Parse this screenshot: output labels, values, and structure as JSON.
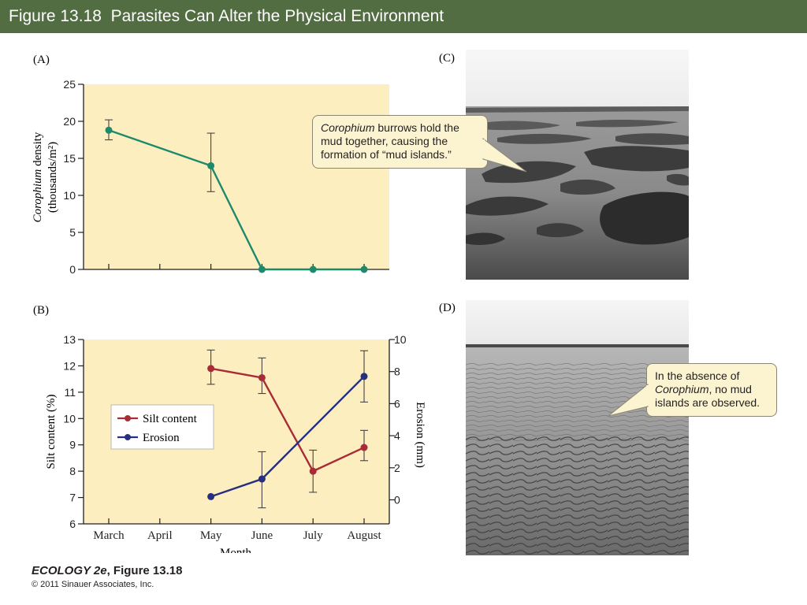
{
  "slide_title": "Figure 13.18  Parasites Can Alter the Physical Environment",
  "panels": {
    "a": "(A)",
    "b": "(B)",
    "c": "(C)",
    "d": "(D)"
  },
  "callouts": {
    "c": {
      "italic": "Corophium",
      "text": " burrows hold the mud together, causing the formation of “mud islands.”"
    },
    "d": {
      "prefix": "In the absence of ",
      "italic": "Corophium",
      "suffix": ", no mud islands are observed."
    }
  },
  "footer": {
    "book_italic": "ECOLOGY 2e",
    "book_rest": ", Figure 13.18",
    "copyright": "© 2011 Sinauer Associates, Inc."
  },
  "colors": {
    "title_bar": "#536d42",
    "plot_bg": "#fdeec0",
    "green_series": "#1d8a6b",
    "red_series": "#a82b36",
    "blue_series": "#26307f",
    "callout_bg": "#fcf3d0"
  },
  "chart_data": [
    {
      "type": "line",
      "panel": "(A)",
      "categories": [
        "March",
        "April",
        "May",
        "June",
        "July",
        "August"
      ],
      "x": [
        0,
        2,
        3,
        4,
        5
      ],
      "ylabel_italic": "Corophium",
      "ylabel_rest": " density",
      "ylabel_line2": "(thousands/m²)",
      "ylim": [
        0,
        25
      ],
      "yticks": [
        0,
        5,
        10,
        15,
        20,
        25
      ],
      "series": [
        {
          "color": "#1d8a6b",
          "values": [
            18.8,
            14.0,
            0,
            0,
            0
          ],
          "err_low": [
            17.5,
            10.5,
            null,
            null,
            null
          ],
          "err_high": [
            20.2,
            18.4,
            null,
            null,
            null
          ]
        }
      ]
    },
    {
      "type": "line",
      "panel": "(B)",
      "categories": [
        "March",
        "April",
        "May",
        "June",
        "July",
        "August"
      ],
      "xlabel": "Month",
      "ylabel": "Silt content (%)",
      "ylim": [
        6,
        13
      ],
      "yticks": [
        6,
        7,
        8,
        9,
        10,
        11,
        12,
        13
      ],
      "y2label": "Erosion (mm)",
      "y2lim": [
        -1.5,
        10
      ],
      "y2ticks": [
        0,
        2,
        4,
        6,
        8,
        10
      ],
      "legend": "center-left",
      "series": [
        {
          "name": "Silt content",
          "axis": "left",
          "color": "#a82b36",
          "x": [
            2,
            3,
            4,
            5
          ],
          "values": [
            11.9,
            11.55,
            8.0,
            8.9
          ],
          "err_low": [
            11.3,
            10.95,
            7.2,
            8.4
          ],
          "err_high": [
            12.6,
            12.3,
            8.8,
            9.55
          ]
        },
        {
          "name": "Erosion",
          "axis": "right",
          "color": "#26307f",
          "x": [
            2,
            3,
            5
          ],
          "values": [
            0.2,
            1.3,
            7.7
          ],
          "err_low": [
            null,
            -0.5,
            6.1
          ],
          "err_high": [
            null,
            3.0,
            9.3
          ]
        }
      ]
    }
  ]
}
